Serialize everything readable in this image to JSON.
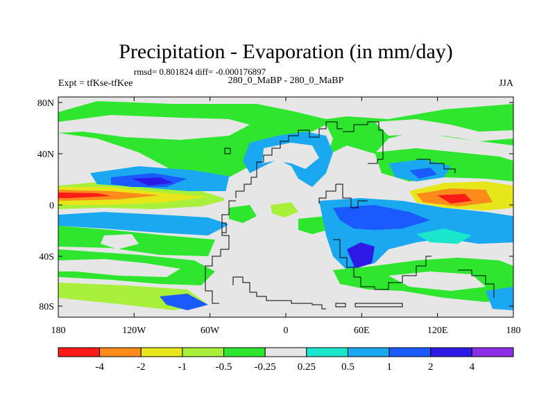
{
  "title": "Precipitation - Evaporation (in mm/day)",
  "stats": "rmsd= 0.801824 diff= -0.000176897",
  "experiment": "Expt = tfKse-tfKee",
  "comparison": "280_0_MaBP - 280_0_MaBP",
  "season": "JJA",
  "lat_ticks": [
    "80N",
    "40N",
    "0",
    "40S",
    "80S"
  ],
  "lon_ticks": [
    "180",
    "120W",
    "60W",
    "0",
    "60E",
    "120E",
    "180"
  ],
  "colorbar": {
    "labels": [
      "-4",
      "-2",
      "-1",
      "-0.5",
      "-0.25",
      "0.25",
      "0.5",
      "1",
      "2",
      "4"
    ],
    "colors": [
      "#ff1a1a",
      "#ff8c1a",
      "#e6e61a",
      "#a8f03c",
      "#2ee62e",
      "#e6e6e6",
      "#1ae6cc",
      "#1aa8f0",
      "#1a5aff",
      "#2e1ae6",
      "#8c2ee6"
    ]
  },
  "palette": {
    "land": "#e6e6e6",
    "green": "#2ee62e",
    "lightgreen": "#a8f03c",
    "yellow": "#e6e61a",
    "orange": "#ff8c1a",
    "red": "#ff1a1a",
    "cyan": "#1ae6cc",
    "lightblue": "#1aa8f0",
    "blue": "#1a5aff",
    "darkblue": "#2e1ae6"
  }
}
